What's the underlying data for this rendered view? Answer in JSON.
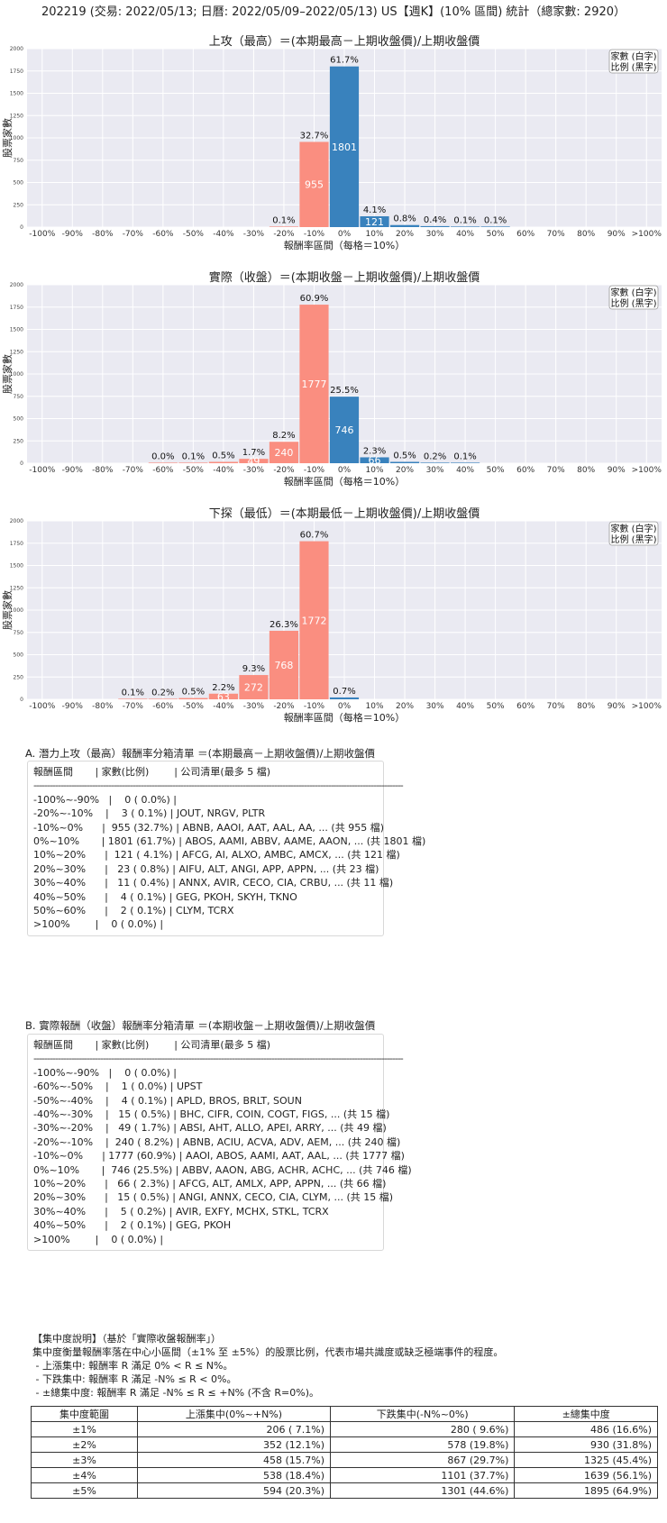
{
  "page_title": "202219 (交易: 2022/05/13; 日曆: 2022/05/09–2022/05/13) US【週K】(10% 區間) 統計（總家數: 2920）",
  "legend_lines": [
    "家數 (白字)",
    "比例 (黑字)"
  ],
  "colors": {
    "neg": "#fa8e80",
    "pos": "#3982bd",
    "plot_bg": "#eaeaf2",
    "grid": "#ffffff"
  },
  "chart_data": [
    {
      "type": "bar",
      "title": "上攻（最高）＝(本期最高－上期收盤價)/上期收盤價",
      "xlabel": "報酬率區間（每格＝10%）",
      "ylabel": "股票家數",
      "categories": [
        "-100%",
        "-90%",
        "-80%",
        "-70%",
        "-60%",
        "-50%",
        "-40%",
        "-30%",
        "-20%",
        "-10%",
        "0%",
        "10%",
        "20%",
        "30%",
        "40%",
        "50%",
        "60%",
        "70%",
        "80%",
        "90%",
        ">100%"
      ],
      "ylim": [
        0,
        2000
      ],
      "yticks": [
        0,
        250,
        500,
        750,
        1000,
        1250,
        1500,
        1750,
        2000
      ],
      "grid": true,
      "legend_position": "top-right",
      "bars": [
        {
          "x": "-20%",
          "count": 3,
          "pct": "0.1%",
          "label": ""
        },
        {
          "x": "-10%",
          "count": 955,
          "pct": "32.7%",
          "label": "955"
        },
        {
          "x": "0%",
          "count": 1801,
          "pct": "61.7%",
          "label": "1801"
        },
        {
          "x": "10%",
          "count": 121,
          "pct": "4.1%",
          "label": "121"
        },
        {
          "x": "20%",
          "count": 23,
          "pct": "0.8%",
          "label": ""
        },
        {
          "x": "30%",
          "count": 11,
          "pct": "0.4%",
          "label": ""
        },
        {
          "x": "40%",
          "count": 4,
          "pct": "0.1%",
          "label": ""
        },
        {
          "x": "50%",
          "count": 2,
          "pct": "0.1%",
          "label": ""
        }
      ]
    },
    {
      "type": "bar",
      "title": "實際（收盤）＝(本期收盤－上期收盤價)/上期收盤價",
      "xlabel": "報酬率區間（每格＝10%）",
      "ylabel": "股票家數",
      "categories": [
        "-100%",
        "-90%",
        "-80%",
        "-70%",
        "-60%",
        "-50%",
        "-40%",
        "-30%",
        "-20%",
        "-10%",
        "0%",
        "10%",
        "20%",
        "30%",
        "40%",
        "50%",
        "60%",
        "70%",
        "80%",
        "90%",
        ">100%"
      ],
      "ylim": [
        0,
        2000
      ],
      "yticks": [
        0,
        250,
        500,
        750,
        1000,
        1250,
        1500,
        1750,
        2000
      ],
      "grid": true,
      "legend_position": "top-right",
      "bars": [
        {
          "x": "-60%",
          "count": 1,
          "pct": "0.0%",
          "label": ""
        },
        {
          "x": "-50%",
          "count": 4,
          "pct": "0.1%",
          "label": ""
        },
        {
          "x": "-40%",
          "count": 15,
          "pct": "0.5%",
          "label": ""
        },
        {
          "x": "-30%",
          "count": 49,
          "pct": "1.7%",
          "label": "49"
        },
        {
          "x": "-20%",
          "count": 240,
          "pct": "8.2%",
          "label": "240"
        },
        {
          "x": "-10%",
          "count": 1777,
          "pct": "60.9%",
          "label": "1777"
        },
        {
          "x": "0%",
          "count": 746,
          "pct": "25.5%",
          "label": "746"
        },
        {
          "x": "10%",
          "count": 66,
          "pct": "2.3%",
          "label": "66"
        },
        {
          "x": "20%",
          "count": 15,
          "pct": "0.5%",
          "label": ""
        },
        {
          "x": "30%",
          "count": 5,
          "pct": "0.2%",
          "label": ""
        },
        {
          "x": "40%",
          "count": 2,
          "pct": "0.1%",
          "label": ""
        }
      ]
    },
    {
      "type": "bar",
      "title": "下探（最低）＝(本期最低－上期收盤價)/上期收盤價",
      "xlabel": "報酬率區間（每格＝10%）",
      "ylabel": "股票家數",
      "categories": [
        "-100%",
        "-90%",
        "-80%",
        "-70%",
        "-60%",
        "-50%",
        "-40%",
        "-30%",
        "-20%",
        "-10%",
        "0%",
        "10%",
        "20%",
        "30%",
        "40%",
        "50%",
        "60%",
        "70%",
        "80%",
        "90%",
        ">100%"
      ],
      "ylim": [
        0,
        2000
      ],
      "yticks": [
        0,
        250,
        500,
        750,
        1000,
        1250,
        1500,
        1750,
        2000
      ],
      "grid": true,
      "legend_position": "top-right",
      "bars": [
        {
          "x": "-70%",
          "count": 3,
          "pct": "0.1%",
          "label": ""
        },
        {
          "x": "-60%",
          "count": 6,
          "pct": "0.2%",
          "label": ""
        },
        {
          "x": "-50%",
          "count": 14,
          "pct": "0.5%",
          "label": ""
        },
        {
          "x": "-40%",
          "count": 63,
          "pct": "2.2%",
          "label": "63"
        },
        {
          "x": "-30%",
          "count": 272,
          "pct": "9.3%",
          "label": "272"
        },
        {
          "x": "-20%",
          "count": 768,
          "pct": "26.3%",
          "label": "768"
        },
        {
          "x": "-10%",
          "count": 1772,
          "pct": "60.7%",
          "label": "1772"
        },
        {
          "x": "0%",
          "count": 21,
          "pct": "0.7%",
          "label": ""
        }
      ]
    }
  ],
  "section_a": {
    "title": "A. 潛力上攻（最高）報酬率分箱清單 ＝(本期最高－上期收盤價)/上期收盤價",
    "header": "報酬區間       | 家數(比例)        | 公司清單(最多 5 檔)",
    "divider": "------------------------------------------------------------------------------------------------------------------------------------------",
    "rows": [
      "-100%~-90%   |    0 ( 0.0%) |",
      "-20%~-10%    |    3 ( 0.1%) | JOUT, NRGV, PLTR",
      "-10%~0%      |  955 (32.7%) | ABNB, AAOI, AAT, AAL, AA, ... (共 955 檔)",
      "0%~10%       | 1801 (61.7%) | ABOS, AAMI, ABBV, AAME, AAON, ... (共 1801 檔)",
      "10%~20%      |  121 ( 4.1%) | AFCG, AI, ALXO, AMBC, AMCX, ... (共 121 檔)",
      "20%~30%      |   23 ( 0.8%) | AIFU, ALT, ANGI, APP, APPN, ... (共 23 檔)",
      "30%~40%      |   11 ( 0.4%) | ANNX, AVIR, CECO, CIA, CRBU, ... (共 11 檔)",
      "40%~50%      |    4 ( 0.1%) | GEG, PKOH, SKYH, TKNO",
      "50%~60%      |    2 ( 0.1%) | CLYM, TCRX",
      ">100%        |    0 ( 0.0%) |"
    ]
  },
  "section_b": {
    "title": "B. 實際報酬（收盤）報酬率分箱清單 ＝(本期收盤－上期收盤價)/上期收盤價",
    "header": "報酬區間       | 家數(比例)        | 公司清單(最多 5 檔)",
    "divider": "------------------------------------------------------------------------------------------------------------------------------------------",
    "rows": [
      "-100%~-90%   |    0 ( 0.0%) |",
      "-60%~-50%    |    1 ( 0.0%) | UPST",
      "-50%~-40%    |    4 ( 0.1%) | APLD, BROS, BRLT, SOUN",
      "-40%~-30%    |   15 ( 0.5%) | BHC, CIFR, COIN, COGT, FIGS, ... (共 15 檔)",
      "-30%~-20%    |   49 ( 1.7%) | ABSI, AHT, ALLO, APEI, ARRY, ... (共 49 檔)",
      "-20%~-10%    |  240 ( 8.2%) | ABNB, ACIU, ACVA, ADV, AEM, ... (共 240 檔)",
      "-10%~0%      | 1777 (60.9%) | AAOI, ABOS, AAMI, AAT, AAL, ... (共 1777 檔)",
      "0%~10%       |  746 (25.5%) | ABBV, AAON, ABG, ACHR, ACHC, ... (共 746 檔)",
      "10%~20%      |   66 ( 2.3%) | AFCG, ALT, AMLX, APP, APPN, ... (共 66 檔)",
      "20%~30%      |   15 ( 0.5%) | ANGI, ANNX, CECO, CIA, CLYM, ... (共 15 檔)",
      "30%~40%      |    5 ( 0.2%) | AVIR, EXFY, MCHX, STKL, TCRX",
      "40%~50%      |    2 ( 0.1%) | GEG, PKOH",
      ">100%        |    0 ( 0.0%) |"
    ]
  },
  "explanation": {
    "lines": [
      "【集中度說明】（基於「實際收盤報酬率」）",
      "集中度衡量報酬率落在中心小區間（±1% 至 ±5%）的股票比例，代表市場共識度或缺乏極端事件的程度。",
      " - 上漲集中: 報酬率 R 滿足 0% < R ≤ N%。",
      " - 下跌集中: 報酬率 R 滿足 -N% ≤ R < 0%。",
      " - ±總集中度: 報酬率 R 滿足 -N% ≤ R ≤ +N% (不含 R=0%)。"
    ]
  },
  "concentration_table": {
    "headers": [
      "集中度範圍",
      "上漲集中(0%~+N%)",
      "下跌集中(-N%~0%)",
      "±總集中度"
    ],
    "rows": [
      [
        "±1%",
        "206 ( 7.1%)",
        "280 ( 9.6%)",
        "486 (16.6%)"
      ],
      [
        "±2%",
        "352 (12.1%)",
        "578 (19.8%)",
        "930 (31.8%)"
      ],
      [
        "±3%",
        "458 (15.7%)",
        "867 (29.7%)",
        "1325 (45.4%)"
      ],
      [
        "±4%",
        "538 (18.4%)",
        "1101 (37.7%)",
        "1639 (56.1%)"
      ],
      [
        "±5%",
        "594 (20.3%)",
        "1301 (44.6%)",
        "1895 (64.9%)"
      ]
    ]
  }
}
